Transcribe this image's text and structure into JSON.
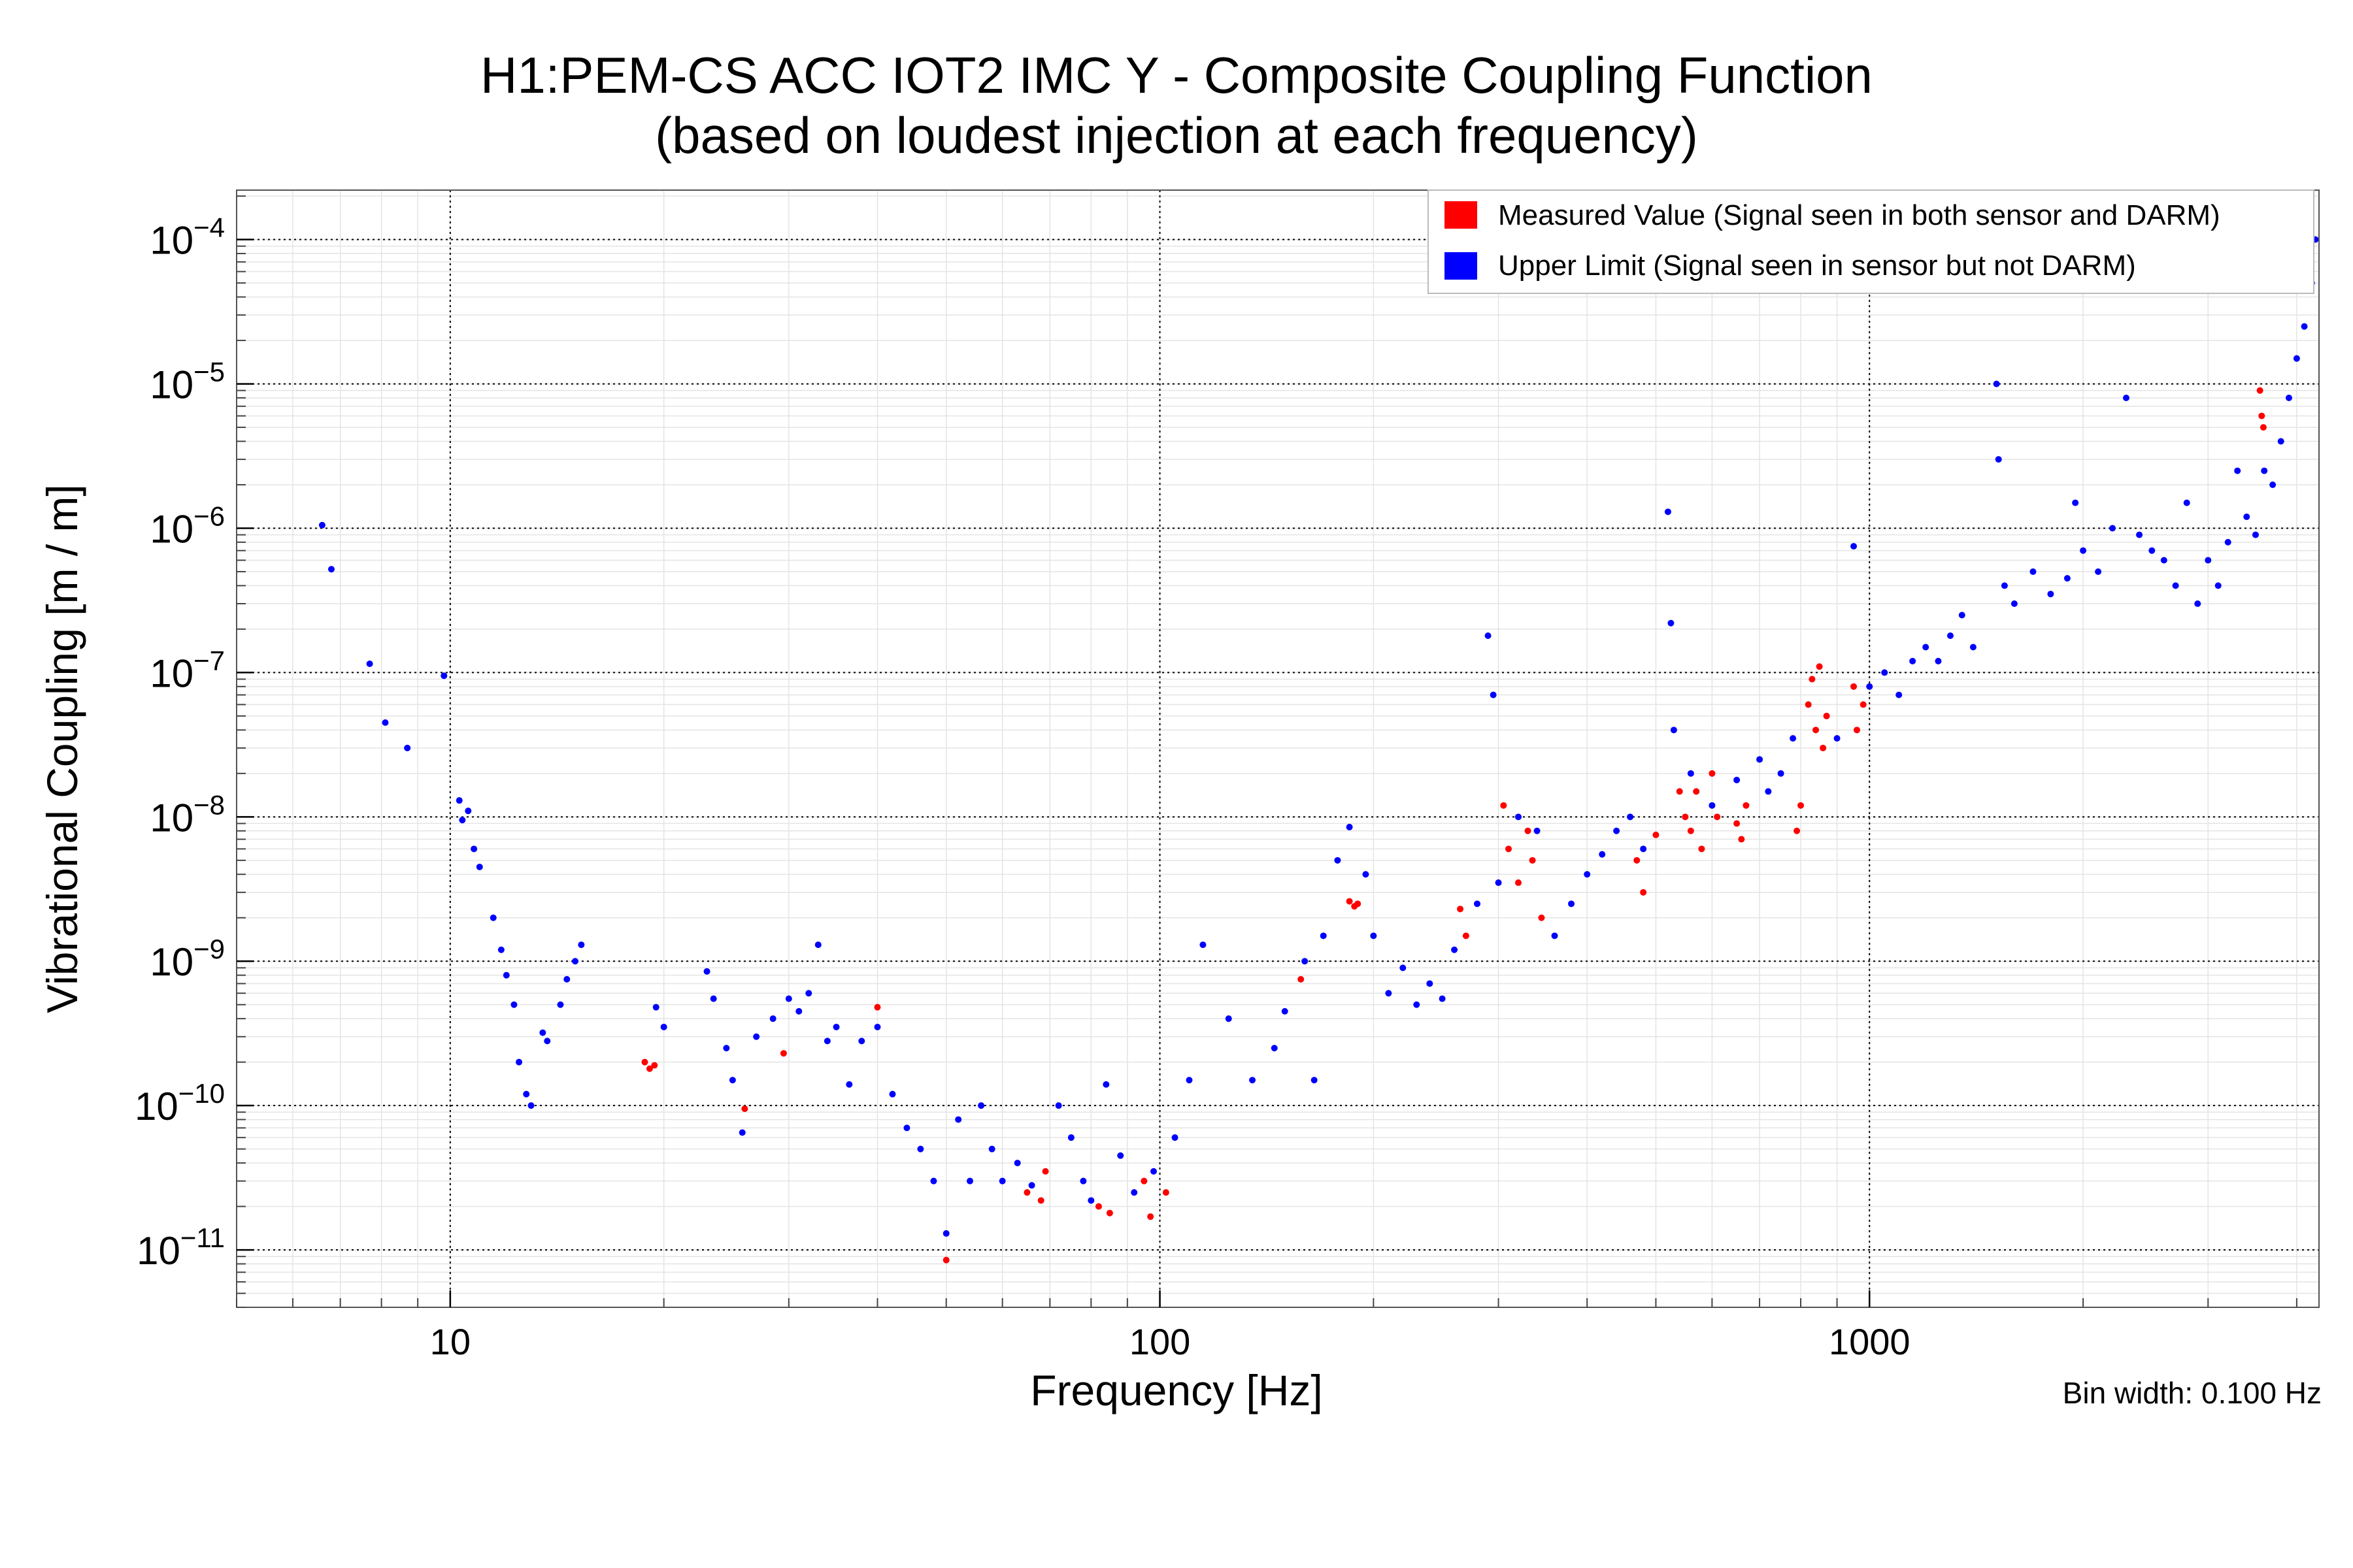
{
  "chart_data": {
    "type": "scatter",
    "title": "H1:PEM-CS ACC IOT2 IMC Y - Composite Coupling Function",
    "subtitle": "(based on loudest injection at each frequency)",
    "xlabel": "Frequency [Hz]",
    "ylabel": "Vibrational Coupling [m / m]",
    "note": "Bin width: 0.100 Hz",
    "xscale": "log",
    "yscale": "log",
    "xlim": [
      5,
      4300
    ],
    "ylim": [
      4e-12,
      0.00022
    ],
    "grid": true,
    "legend_position": "top-right",
    "x_ticks": [
      {
        "value": 10,
        "label": "10"
      },
      {
        "value": 100,
        "label": "100"
      },
      {
        "value": 1000,
        "label": "1000"
      }
    ],
    "y_ticks": [
      {
        "value": 1e-11,
        "base": "10",
        "exp": "−11"
      },
      {
        "value": 1e-10,
        "base": "10",
        "exp": "−10"
      },
      {
        "value": 1e-09,
        "base": "10",
        "exp": "−9"
      },
      {
        "value": 1e-08,
        "base": "10",
        "exp": "−8"
      },
      {
        "value": 1e-07,
        "base": "10",
        "exp": "−7"
      },
      {
        "value": 1e-06,
        "base": "10",
        "exp": "−6"
      },
      {
        "value": 1e-05,
        "base": "10",
        "exp": "−5"
      },
      {
        "value": 0.0001,
        "base": "10",
        "exp": "−4"
      }
    ],
    "series": [
      {
        "name": "Measured Value (Signal seen in both sensor and DARM)",
        "color": "#ff0000",
        "points": [
          [
            18.8,
            2e-10
          ],
          [
            19.1,
            1.8e-10
          ],
          [
            19.4,
            1.9e-10
          ],
          [
            26.0,
            9.5e-11
          ],
          [
            29.5,
            2.3e-10
          ],
          [
            40.0,
            4.8e-10
          ],
          [
            50.0,
            8.5e-12
          ],
          [
            65.0,
            2.5e-11
          ],
          [
            68.0,
            2.2e-11
          ],
          [
            69.0,
            3.5e-11
          ],
          [
            82.0,
            2e-11
          ],
          [
            85.0,
            1.8e-11
          ],
          [
            95.0,
            3e-11
          ],
          [
            97.0,
            1.7e-11
          ],
          [
            102.0,
            2.5e-11
          ],
          [
            158.0,
            7.5e-10
          ],
          [
            185.0,
            2.6e-09
          ],
          [
            188.0,
            2.4e-09
          ],
          [
            190.0,
            2.5e-09
          ],
          [
            265.0,
            2.3e-09
          ],
          [
            270.0,
            1.5e-09
          ],
          [
            305.0,
            1.2e-08
          ],
          [
            310.0,
            6e-09
          ],
          [
            320.0,
            3.5e-09
          ],
          [
            330.0,
            8e-09
          ],
          [
            335.0,
            5e-09
          ],
          [
            345.0,
            2e-09
          ],
          [
            470.0,
            5e-09
          ],
          [
            480.0,
            3e-09
          ],
          [
            500.0,
            7.5e-09
          ],
          [
            540.0,
            1.5e-08
          ],
          [
            550.0,
            1e-08
          ],
          [
            560.0,
            8e-09
          ],
          [
            570.0,
            1.5e-08
          ],
          [
            580.0,
            6e-09
          ],
          [
            600.0,
            2e-08
          ],
          [
            610.0,
            1e-08
          ],
          [
            650.0,
            9e-09
          ],
          [
            660.0,
            7e-09
          ],
          [
            670.0,
            1.2e-08
          ],
          [
            790.0,
            8e-09
          ],
          [
            800.0,
            1.2e-08
          ],
          [
            820.0,
            6e-08
          ],
          [
            830.0,
            9e-08
          ],
          [
            840.0,
            4e-08
          ],
          [
            850.0,
            1.1e-07
          ],
          [
            860.0,
            3e-08
          ],
          [
            870.0,
            5e-08
          ],
          [
            950.0,
            8e-08
          ],
          [
            960.0,
            4e-08
          ],
          [
            980.0,
            6e-08
          ],
          [
            3550.0,
            9e-06
          ],
          [
            3570.0,
            6e-06
          ],
          [
            3590.0,
            5e-06
          ]
        ]
      },
      {
        "name": "Upper Limit (Signal seen in sensor but not DARM)",
        "color": "#0000ff",
        "points": [
          [
            6.6,
            1.05e-06
          ],
          [
            6.8,
            5.2e-07
          ],
          [
            7.7,
            1.15e-07
          ],
          [
            8.1,
            4.5e-08
          ],
          [
            8.7,
            3e-08
          ],
          [
            9.8,
            9.5e-08
          ],
          [
            10.3,
            1.3e-08
          ],
          [
            10.4,
            9.5e-09
          ],
          [
            10.6,
            1.1e-08
          ],
          [
            10.8,
            6e-09
          ],
          [
            11.0,
            4.5e-09
          ],
          [
            11.5,
            2e-09
          ],
          [
            11.8,
            1.2e-09
          ],
          [
            12.0,
            8e-10
          ],
          [
            12.3,
            5e-10
          ],
          [
            12.5,
            2e-10
          ],
          [
            12.8,
            1.2e-10
          ],
          [
            13.0,
            1e-10
          ],
          [
            13.5,
            3.2e-10
          ],
          [
            13.7,
            2.8e-10
          ],
          [
            14.3,
            5e-10
          ],
          [
            14.6,
            7.5e-10
          ],
          [
            15.0,
            1e-09
          ],
          [
            15.3,
            1.3e-09
          ],
          [
            19.5,
            4.8e-10
          ],
          [
            20.0,
            3.5e-10
          ],
          [
            23.0,
            8.5e-10
          ],
          [
            23.5,
            5.5e-10
          ],
          [
            24.5,
            2.5e-10
          ],
          [
            25.0,
            1.5e-10
          ],
          [
            25.8,
            6.5e-11
          ],
          [
            27.0,
            3e-10
          ],
          [
            28.5,
            4e-10
          ],
          [
            30.0,
            5.5e-10
          ],
          [
            31.0,
            4.5e-10
          ],
          [
            32.0,
            6e-10
          ],
          [
            33.0,
            1.3e-09
          ],
          [
            34.0,
            2.8e-10
          ],
          [
            35.0,
            3.5e-10
          ],
          [
            36.5,
            1.4e-10
          ],
          [
            38.0,
            2.8e-10
          ],
          [
            40.0,
            3.5e-10
          ],
          [
            42.0,
            1.2e-10
          ],
          [
            44.0,
            7e-11
          ],
          [
            46.0,
            5e-11
          ],
          [
            48.0,
            3e-11
          ],
          [
            50.0,
            1.3e-11
          ],
          [
            52.0,
            8e-11
          ],
          [
            54.0,
            3e-11
          ],
          [
            56.0,
            1e-10
          ],
          [
            58.0,
            5e-11
          ],
          [
            60.0,
            3e-11
          ],
          [
            63.0,
            4e-11
          ],
          [
            66.0,
            2.8e-11
          ],
          [
            72.0,
            1e-10
          ],
          [
            75.0,
            6e-11
          ],
          [
            78.0,
            3e-11
          ],
          [
            80.0,
            2.2e-11
          ],
          [
            84.0,
            1.4e-10
          ],
          [
            88.0,
            4.5e-11
          ],
          [
            92.0,
            2.5e-11
          ],
          [
            98.0,
            3.5e-11
          ],
          [
            105.0,
            6e-11
          ],
          [
            110.0,
            1.5e-10
          ],
          [
            115.0,
            1.3e-09
          ],
          [
            125.0,
            4e-10
          ],
          [
            135.0,
            1.5e-10
          ],
          [
            145.0,
            2.5e-10
          ],
          [
            150.0,
            4.5e-10
          ],
          [
            160.0,
            1e-09
          ],
          [
            165.0,
            1.5e-10
          ],
          [
            170.0,
            1.5e-09
          ],
          [
            178.0,
            5e-09
          ],
          [
            185.0,
            8.5e-09
          ],
          [
            195.0,
            4e-09
          ],
          [
            200.0,
            1.5e-09
          ],
          [
            210.0,
            6e-10
          ],
          [
            220.0,
            9e-10
          ],
          [
            230.0,
            5e-10
          ],
          [
            240.0,
            7e-10
          ],
          [
            250.0,
            5.5e-10
          ],
          [
            260.0,
            1.2e-09
          ],
          [
            280.0,
            2.5e-09
          ],
          [
            290.0,
            1.8e-07
          ],
          [
            295.0,
            7e-08
          ],
          [
            300.0,
            3.5e-09
          ],
          [
            320.0,
            1e-08
          ],
          [
            340.0,
            8e-09
          ],
          [
            360.0,
            1.5e-09
          ],
          [
            380.0,
            2.5e-09
          ],
          [
            400.0,
            4e-09
          ],
          [
            420.0,
            5.5e-09
          ],
          [
            440.0,
            8e-09
          ],
          [
            460.0,
            1e-08
          ],
          [
            480.0,
            6e-09
          ],
          [
            520.0,
            1.3e-06
          ],
          [
            525.0,
            2.2e-07
          ],
          [
            530.0,
            4e-08
          ],
          [
            560.0,
            2e-08
          ],
          [
            600.0,
            1.2e-08
          ],
          [
            650.0,
            1.8e-08
          ],
          [
            700.0,
            2.5e-08
          ],
          [
            720.0,
            1.5e-08
          ],
          [
            750.0,
            2e-08
          ],
          [
            780.0,
            3.5e-08
          ],
          [
            900.0,
            3.5e-08
          ],
          [
            950.0,
            7.5e-07
          ],
          [
            1000.0,
            8e-08
          ],
          [
            1050.0,
            1e-07
          ],
          [
            1100.0,
            7e-08
          ],
          [
            1150.0,
            1.2e-07
          ],
          [
            1200.0,
            1.5e-07
          ],
          [
            1250.0,
            1.2e-07
          ],
          [
            1300.0,
            1.8e-07
          ],
          [
            1350.0,
            2.5e-07
          ],
          [
            1400.0,
            1.5e-07
          ],
          [
            1500.0,
            8.5e-05
          ],
          [
            1510.0,
            1e-05
          ],
          [
            1520.0,
            3e-06
          ],
          [
            1550.0,
            4e-07
          ],
          [
            1600.0,
            3e-07
          ],
          [
            1700.0,
            5e-07
          ],
          [
            1800.0,
            3.5e-07
          ],
          [
            1900.0,
            4.5e-07
          ],
          [
            1950.0,
            1.5e-06
          ],
          [
            2000.0,
            7e-07
          ],
          [
            2100.0,
            5e-07
          ],
          [
            2200.0,
            1e-06
          ],
          [
            2300.0,
            8e-06
          ],
          [
            2400.0,
            9e-07
          ],
          [
            2500.0,
            7e-07
          ],
          [
            2600.0,
            6e-07
          ],
          [
            2700.0,
            4e-07
          ],
          [
            2800.0,
            1.5e-06
          ],
          [
            2900.0,
            3e-07
          ],
          [
            3000.0,
            6e-07
          ],
          [
            3100.0,
            4e-07
          ],
          [
            3200.0,
            8e-07
          ],
          [
            3300.0,
            2.5e-06
          ],
          [
            3400.0,
            1.2e-06
          ],
          [
            3500.0,
            9e-07
          ],
          [
            3600.0,
            2.5e-06
          ],
          [
            3700.0,
            2e-06
          ],
          [
            3800.0,
            4e-06
          ],
          [
            3900.0,
            8e-06
          ],
          [
            4000.0,
            1.5e-05
          ],
          [
            4100.0,
            2.5e-05
          ],
          [
            4200.0,
            5e-05
          ],
          [
            4250.0,
            0.0001
          ]
        ]
      }
    ]
  }
}
